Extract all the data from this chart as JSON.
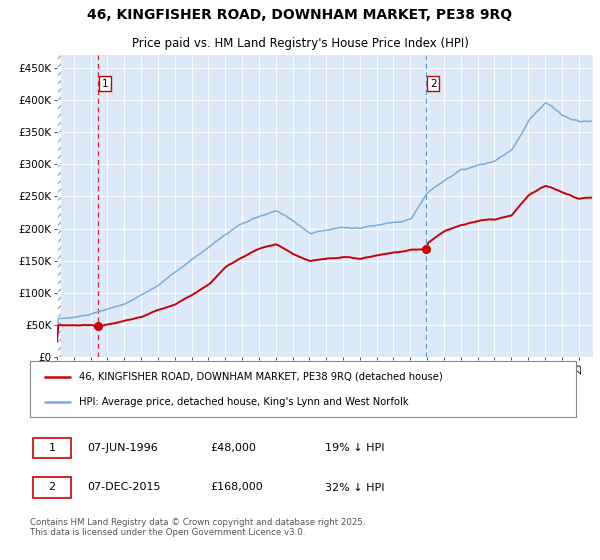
{
  "title": "46, KINGFISHER ROAD, DOWNHAM MARKET, PE38 9RQ",
  "subtitle": "Price paid vs. HM Land Registry's House Price Index (HPI)",
  "bg_color": "#dce9f8",
  "hpi_color": "#7aaddb",
  "price_color": "#cc0000",
  "ylim": [
    0,
    470000
  ],
  "yticks": [
    0,
    50000,
    100000,
    150000,
    200000,
    250000,
    300000,
    350000,
    400000,
    450000
  ],
  "ytick_labels": [
    "£0",
    "£50K",
    "£100K",
    "£150K",
    "£200K",
    "£250K",
    "£300K",
    "£350K",
    "£400K",
    "£450K"
  ],
  "purchase1_t": 1996.4167,
  "purchase1_price": 48000,
  "purchase2_t": 2015.9167,
  "purchase2_price": 168000,
  "legend_line1": "46, KINGFISHER ROAD, DOWNHAM MARKET, PE38 9RQ (detached house)",
  "legend_line2": "HPI: Average price, detached house, King's Lynn and West Norfolk",
  "table_row1": [
    "1",
    "07-JUN-1996",
    "£48,000",
    "19% ↓ HPI"
  ],
  "table_row2": [
    "2",
    "07-DEC-2015",
    "£168,000",
    "32% ↓ HPI"
  ],
  "footer": "Contains HM Land Registry data © Crown copyright and database right 2025.\nThis data is licensed under the Open Government Licence v3.0."
}
